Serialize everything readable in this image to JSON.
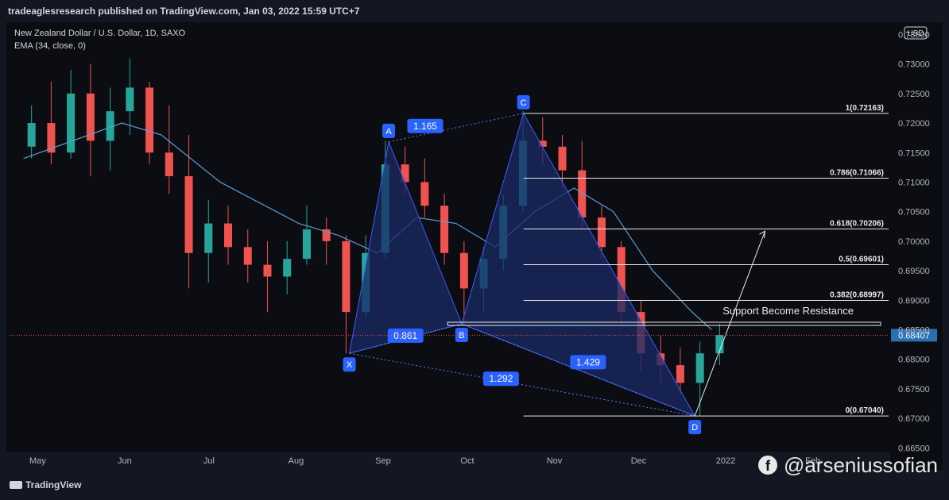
{
  "header": {
    "published": "tradeaglesresearch published on TradingView.com, Jan 03, 2022 15:59 UTC+7"
  },
  "legend": {
    "symbol": "New Zealand Dollar / U.S. Dollar, 1D, SAXO",
    "indicator": "EMA (34, close, 0)"
  },
  "currency_badge": "USD",
  "price_tag": "0.68407",
  "footer": {
    "brand": "TradingView",
    "watermark": "@arseniussofian"
  },
  "colors": {
    "up": "#26a69a",
    "down": "#ef5350",
    "ema": "#5b9bd5",
    "pattern_fill": "#1a2a66",
    "pattern_label": "#2962ff",
    "price_tag": "#2a6fb0",
    "background": "#0c0d12"
  },
  "chart_data": {
    "type": "candlestick",
    "title": "New Zealand Dollar / U.S. Dollar, 1D, SAXO",
    "xlabel": "",
    "ylabel": "",
    "ylim": [
      0.6645,
      0.736
    ],
    "y_ticks": [
      "0.73500",
      "0.73000",
      "0.72500",
      "0.72000",
      "0.71500",
      "0.71000",
      "0.70500",
      "0.70000",
      "0.69500",
      "0.69000",
      "0.68500",
      "0.68000",
      "0.67500",
      "0.67000",
      "0.66500"
    ],
    "x_ticks": [
      "May",
      "Jun",
      "Jul",
      "Aug",
      "Sep",
      "Oct",
      "Nov",
      "Dec",
      "2022",
      "Feb"
    ],
    "grid": false,
    "candles": [
      {
        "x": "2021-04-26",
        "o": 0.716,
        "h": 0.723,
        "l": 0.714,
        "c": 0.72
      },
      {
        "x": "2021-05-03",
        "o": 0.72,
        "h": 0.727,
        "l": 0.713,
        "c": 0.715
      },
      {
        "x": "2021-05-10",
        "o": 0.715,
        "h": 0.729,
        "l": 0.714,
        "c": 0.725
      },
      {
        "x": "2021-05-17",
        "o": 0.725,
        "h": 0.73,
        "l": 0.711,
        "c": 0.717
      },
      {
        "x": "2021-05-24",
        "o": 0.717,
        "h": 0.726,
        "l": 0.712,
        "c": 0.722
      },
      {
        "x": "2021-05-31",
        "o": 0.722,
        "h": 0.731,
        "l": 0.718,
        "c": 0.726
      },
      {
        "x": "2021-06-07",
        "o": 0.726,
        "h": 0.727,
        "l": 0.713,
        "c": 0.715
      },
      {
        "x": "2021-06-14",
        "o": 0.715,
        "h": 0.723,
        "l": 0.708,
        "c": 0.711
      },
      {
        "x": "2021-06-21",
        "o": 0.711,
        "h": 0.718,
        "l": 0.692,
        "c": 0.698
      },
      {
        "x": "2021-06-28",
        "o": 0.698,
        "h": 0.707,
        "l": 0.693,
        "c": 0.703
      },
      {
        "x": "2021-07-05",
        "o": 0.703,
        "h": 0.706,
        "l": 0.696,
        "c": 0.699
      },
      {
        "x": "2021-07-12",
        "o": 0.699,
        "h": 0.702,
        "l": 0.693,
        "c": 0.696
      },
      {
        "x": "2021-07-19",
        "o": 0.696,
        "h": 0.7,
        "l": 0.688,
        "c": 0.694
      },
      {
        "x": "2021-07-26",
        "o": 0.694,
        "h": 0.7,
        "l": 0.691,
        "c": 0.697
      },
      {
        "x": "2021-08-02",
        "o": 0.697,
        "h": 0.706,
        "l": 0.696,
        "c": 0.702
      },
      {
        "x": "2021-08-09",
        "o": 0.702,
        "h": 0.704,
        "l": 0.696,
        "c": 0.7
      },
      {
        "x": "2021-08-16",
        "o": 0.7,
        "h": 0.701,
        "l": 0.681,
        "c": 0.688
      },
      {
        "x": "2021-08-23",
        "o": 0.688,
        "h": 0.701,
        "l": 0.687,
        "c": 0.698
      },
      {
        "x": "2021-08-30",
        "o": 0.698,
        "h": 0.717,
        "l": 0.697,
        "c": 0.713
      },
      {
        "x": "2021-09-06",
        "o": 0.713,
        "h": 0.716,
        "l": 0.708,
        "c": 0.71
      },
      {
        "x": "2021-09-13",
        "o": 0.71,
        "h": 0.714,
        "l": 0.704,
        "c": 0.706
      },
      {
        "x": "2021-09-20",
        "o": 0.706,
        "h": 0.708,
        "l": 0.696,
        "c": 0.698
      },
      {
        "x": "2021-09-27",
        "o": 0.698,
        "h": 0.7,
        "l": 0.686,
        "c": 0.692
      },
      {
        "x": "2021-10-04",
        "o": 0.692,
        "h": 0.699,
        "l": 0.688,
        "c": 0.697
      },
      {
        "x": "2021-10-11",
        "o": 0.697,
        "h": 0.708,
        "l": 0.695,
        "c": 0.706
      },
      {
        "x": "2021-10-18",
        "o": 0.706,
        "h": 0.722,
        "l": 0.705,
        "c": 0.717
      },
      {
        "x": "2021-10-25",
        "o": 0.717,
        "h": 0.721,
        "l": 0.713,
        "c": 0.716
      },
      {
        "x": "2021-11-01",
        "o": 0.716,
        "h": 0.718,
        "l": 0.709,
        "c": 0.712
      },
      {
        "x": "2021-11-08",
        "o": 0.712,
        "h": 0.717,
        "l": 0.702,
        "c": 0.704
      },
      {
        "x": "2021-11-15",
        "o": 0.704,
        "h": 0.706,
        "l": 0.697,
        "c": 0.699
      },
      {
        "x": "2021-11-22",
        "o": 0.699,
        "h": 0.7,
        "l": 0.686,
        "c": 0.688
      },
      {
        "x": "2021-11-29",
        "o": 0.688,
        "h": 0.69,
        "l": 0.678,
        "c": 0.681
      },
      {
        "x": "2021-12-06",
        "o": 0.681,
        "h": 0.684,
        "l": 0.676,
        "c": 0.679
      },
      {
        "x": "2021-12-13",
        "o": 0.679,
        "h": 0.682,
        "l": 0.674,
        "c": 0.676
      },
      {
        "x": "2021-12-20",
        "o": 0.676,
        "h": 0.683,
        "l": 0.6704,
        "c": 0.681
      },
      {
        "x": "2021-12-27",
        "o": 0.681,
        "h": 0.686,
        "l": 0.679,
        "c": 0.6841
      }
    ],
    "ema_series": {
      "name": "EMA (34, close, 0)",
      "values": [
        {
          "x": "2021-04-26",
          "y": 0.714
        },
        {
          "x": "2021-05-31",
          "y": 0.72
        },
        {
          "x": "2021-06-14",
          "y": 0.718
        },
        {
          "x": "2021-07-05",
          "y": 0.71
        },
        {
          "x": "2021-08-02",
          "y": 0.703
        },
        {
          "x": "2021-08-16",
          "y": 0.701
        },
        {
          "x": "2021-08-30",
          "y": 0.698
        },
        {
          "x": "2021-09-13",
          "y": 0.704
        },
        {
          "x": "2021-09-27",
          "y": 0.703
        },
        {
          "x": "2021-10-11",
          "y": 0.699
        },
        {
          "x": "2021-10-25",
          "y": 0.705
        },
        {
          "x": "2021-11-08",
          "y": 0.709
        },
        {
          "x": "2021-11-22",
          "y": 0.705
        },
        {
          "x": "2021-12-06",
          "y": 0.695
        },
        {
          "x": "2021-12-20",
          "y": 0.688
        },
        {
          "x": "2021-12-27",
          "y": 0.685
        }
      ]
    },
    "pattern_points": [
      {
        "label": "X",
        "x": "2021-08-20",
        "y": 0.681
      },
      {
        "label": "A",
        "x": "2021-09-03",
        "y": 0.7168
      },
      {
        "label": "B",
        "x": "2021-09-29",
        "y": 0.686
      },
      {
        "label": "C",
        "x": "2021-10-21",
        "y": 0.72163
      },
      {
        "label": "D",
        "x": "2021-12-21",
        "y": 0.6704
      }
    ],
    "ratios": [
      {
        "label": "1.165",
        "x": "2021-09-16",
        "y": 0.7195
      },
      {
        "label": "0.861",
        "x": "2021-09-09",
        "y": 0.684
      },
      {
        "label": "1.429",
        "x": "2021-11-13",
        "y": 0.6795
      },
      {
        "label": "1.292",
        "x": "2021-10-13",
        "y": 0.6767
      }
    ],
    "fib_levels": [
      {
        "label": "1(0.72163)",
        "y": 0.72163
      },
      {
        "label": "0.786(0.71066)",
        "y": 0.71066
      },
      {
        "label": "0.618(0.70206)",
        "y": 0.70206
      },
      {
        "label": "0.5(0.69601)",
        "y": 0.69601
      },
      {
        "label": "0.382(0.68997)",
        "y": 0.68997
      },
      {
        "label": "0(0.67040)",
        "y": 0.6704
      }
    ],
    "support_resistance": {
      "label": "Support Become Resistance",
      "y": 0.686
    },
    "projection": {
      "from": {
        "x": "2021-12-21",
        "y": 0.6704
      },
      "to": {
        "x": "2022-01-15",
        "y": 0.7017
      }
    },
    "current_price": 0.68407
  }
}
